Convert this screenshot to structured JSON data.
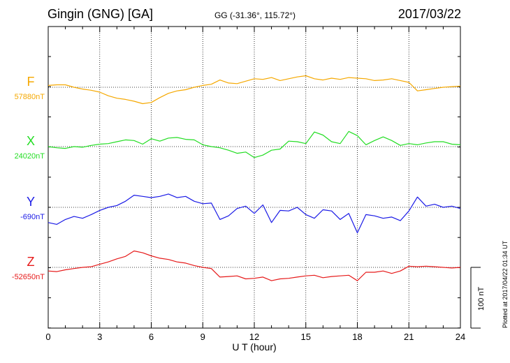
{
  "header": {
    "station": "Gingin (GNG)  [GA]",
    "coords": "GG (-31.36°, 115.72°)",
    "date": "2017/03/22"
  },
  "side_note": "Plotted at 2017/04/22 01:34 UT",
  "scale_label": "100 nT",
  "chart_data": {
    "type": "line",
    "xlabel": "U T (hour)",
    "xlim": [
      0,
      24
    ],
    "xticks": [
      0,
      3,
      6,
      9,
      12,
      15,
      18,
      21,
      24
    ],
    "grid": true,
    "series": [
      {
        "name": "F",
        "baseline_label": "57880nT",
        "color": "#f5a800",
        "x": [
          0,
          0.5,
          1,
          1.5,
          2,
          2.5,
          3,
          3.5,
          4,
          4.5,
          5,
          5.5,
          6,
          6.5,
          7,
          7.5,
          8,
          8.5,
          9,
          9.5,
          10,
          10.5,
          11,
          11.5,
          12,
          12.5,
          13,
          13.5,
          14,
          14.5,
          15,
          15.5,
          16,
          16.5,
          17,
          17.5,
          18,
          18.5,
          19,
          19.5,
          20,
          20.5,
          21,
          21.5,
          22,
          22.5,
          23,
          23.5,
          24
        ],
        "y": [
          3,
          4,
          4,
          0,
          -3,
          -5,
          -8,
          -14,
          -18,
          -20,
          -23,
          -27,
          -25,
          -17,
          -10,
          -6,
          -4,
          0,
          3,
          5,
          12,
          7,
          6,
          10,
          14,
          13,
          16,
          11,
          14,
          17,
          19,
          14,
          12,
          15,
          13,
          16,
          15,
          14,
          11,
          12,
          14,
          11,
          8,
          -6,
          -4,
          -2,
          0,
          1,
          2
        ]
      },
      {
        "name": "X",
        "baseline_label": "24020nT",
        "color": "#22dd22",
        "x": [
          0,
          0.5,
          1,
          1.5,
          2,
          2.5,
          3,
          3.5,
          4,
          4.5,
          5,
          5.5,
          6,
          6.5,
          7,
          7.5,
          8,
          8.5,
          9,
          9.5,
          10,
          10.5,
          11,
          11.5,
          12,
          12.5,
          13,
          13.5,
          14,
          14.5,
          15,
          15.5,
          16,
          16.5,
          17,
          17.5,
          18,
          18.5,
          19,
          19.5,
          20,
          20.5,
          21,
          21.5,
          22,
          22.5,
          23,
          23.5,
          24
        ],
        "y": [
          0,
          -2,
          -3,
          0,
          -1,
          2,
          4,
          5,
          8,
          11,
          10,
          4,
          13,
          9,
          14,
          15,
          12,
          11,
          3,
          0,
          -2,
          -6,
          -11,
          -9,
          -18,
          -14,
          -6,
          -4,
          9,
          8,
          5,
          24,
          19,
          8,
          5,
          25,
          18,
          3,
          10,
          16,
          10,
          2,
          5,
          3,
          6,
          8,
          8,
          4,
          3
        ]
      },
      {
        "name": "Y",
        "baseline_label": "-690nT",
        "color": "#1a1ae6",
        "x": [
          0,
          0.5,
          1,
          1.5,
          2,
          2.5,
          3,
          3.5,
          4,
          4.5,
          5,
          5.5,
          6,
          6.5,
          7,
          7.5,
          8,
          8.5,
          9,
          9.5,
          10,
          10.5,
          11,
          11.5,
          12,
          12.5,
          13,
          13.5,
          14,
          14.5,
          15,
          15.5,
          16,
          16.5,
          17,
          17.5,
          18,
          18.5,
          19,
          19.5,
          20,
          20.5,
          21,
          21.5,
          22,
          22.5,
          23,
          23.5,
          24
        ],
        "y": [
          -25,
          -28,
          -20,
          -15,
          -18,
          -12,
          -5,
          0,
          3,
          10,
          20,
          18,
          16,
          18,
          22,
          16,
          18,
          10,
          6,
          7,
          -20,
          -14,
          -2,
          2,
          -10,
          4,
          -25,
          -5,
          -6,
          0,
          -12,
          -18,
          -4,
          -6,
          -20,
          -10,
          -42,
          -12,
          -14,
          -18,
          -16,
          -22,
          -6,
          17,
          2,
          5,
          0,
          2,
          -2
        ]
      },
      {
        "name": "Z",
        "baseline_label": "-52650nT",
        "color": "#e61a1a",
        "x": [
          0,
          0.5,
          1,
          1.5,
          2,
          2.5,
          3,
          3.5,
          4,
          4.5,
          5,
          5.5,
          6,
          6.5,
          7,
          7.5,
          8,
          8.5,
          9,
          9.5,
          10,
          10.5,
          11,
          11.5,
          12,
          12.5,
          13,
          13.5,
          14,
          14.5,
          15,
          15.5,
          16,
          16.5,
          17,
          17.5,
          18,
          18.5,
          19,
          19.5,
          20,
          20.5,
          21,
          21.5,
          22,
          22.5,
          23,
          23.5,
          24
        ],
        "y": [
          -6,
          -7,
          -4,
          -2,
          0,
          1,
          5,
          9,
          14,
          18,
          27,
          24,
          19,
          15,
          13,
          9,
          7,
          3,
          0,
          -2,
          -16,
          -15,
          -14,
          -19,
          -18,
          -16,
          -22,
          -19,
          -18,
          -16,
          -14,
          -13,
          -17,
          -15,
          -14,
          -13,
          -22,
          -8,
          -8,
          -6,
          -10,
          -6,
          2,
          1,
          2,
          1,
          0,
          -1,
          0
        ]
      }
    ]
  }
}
